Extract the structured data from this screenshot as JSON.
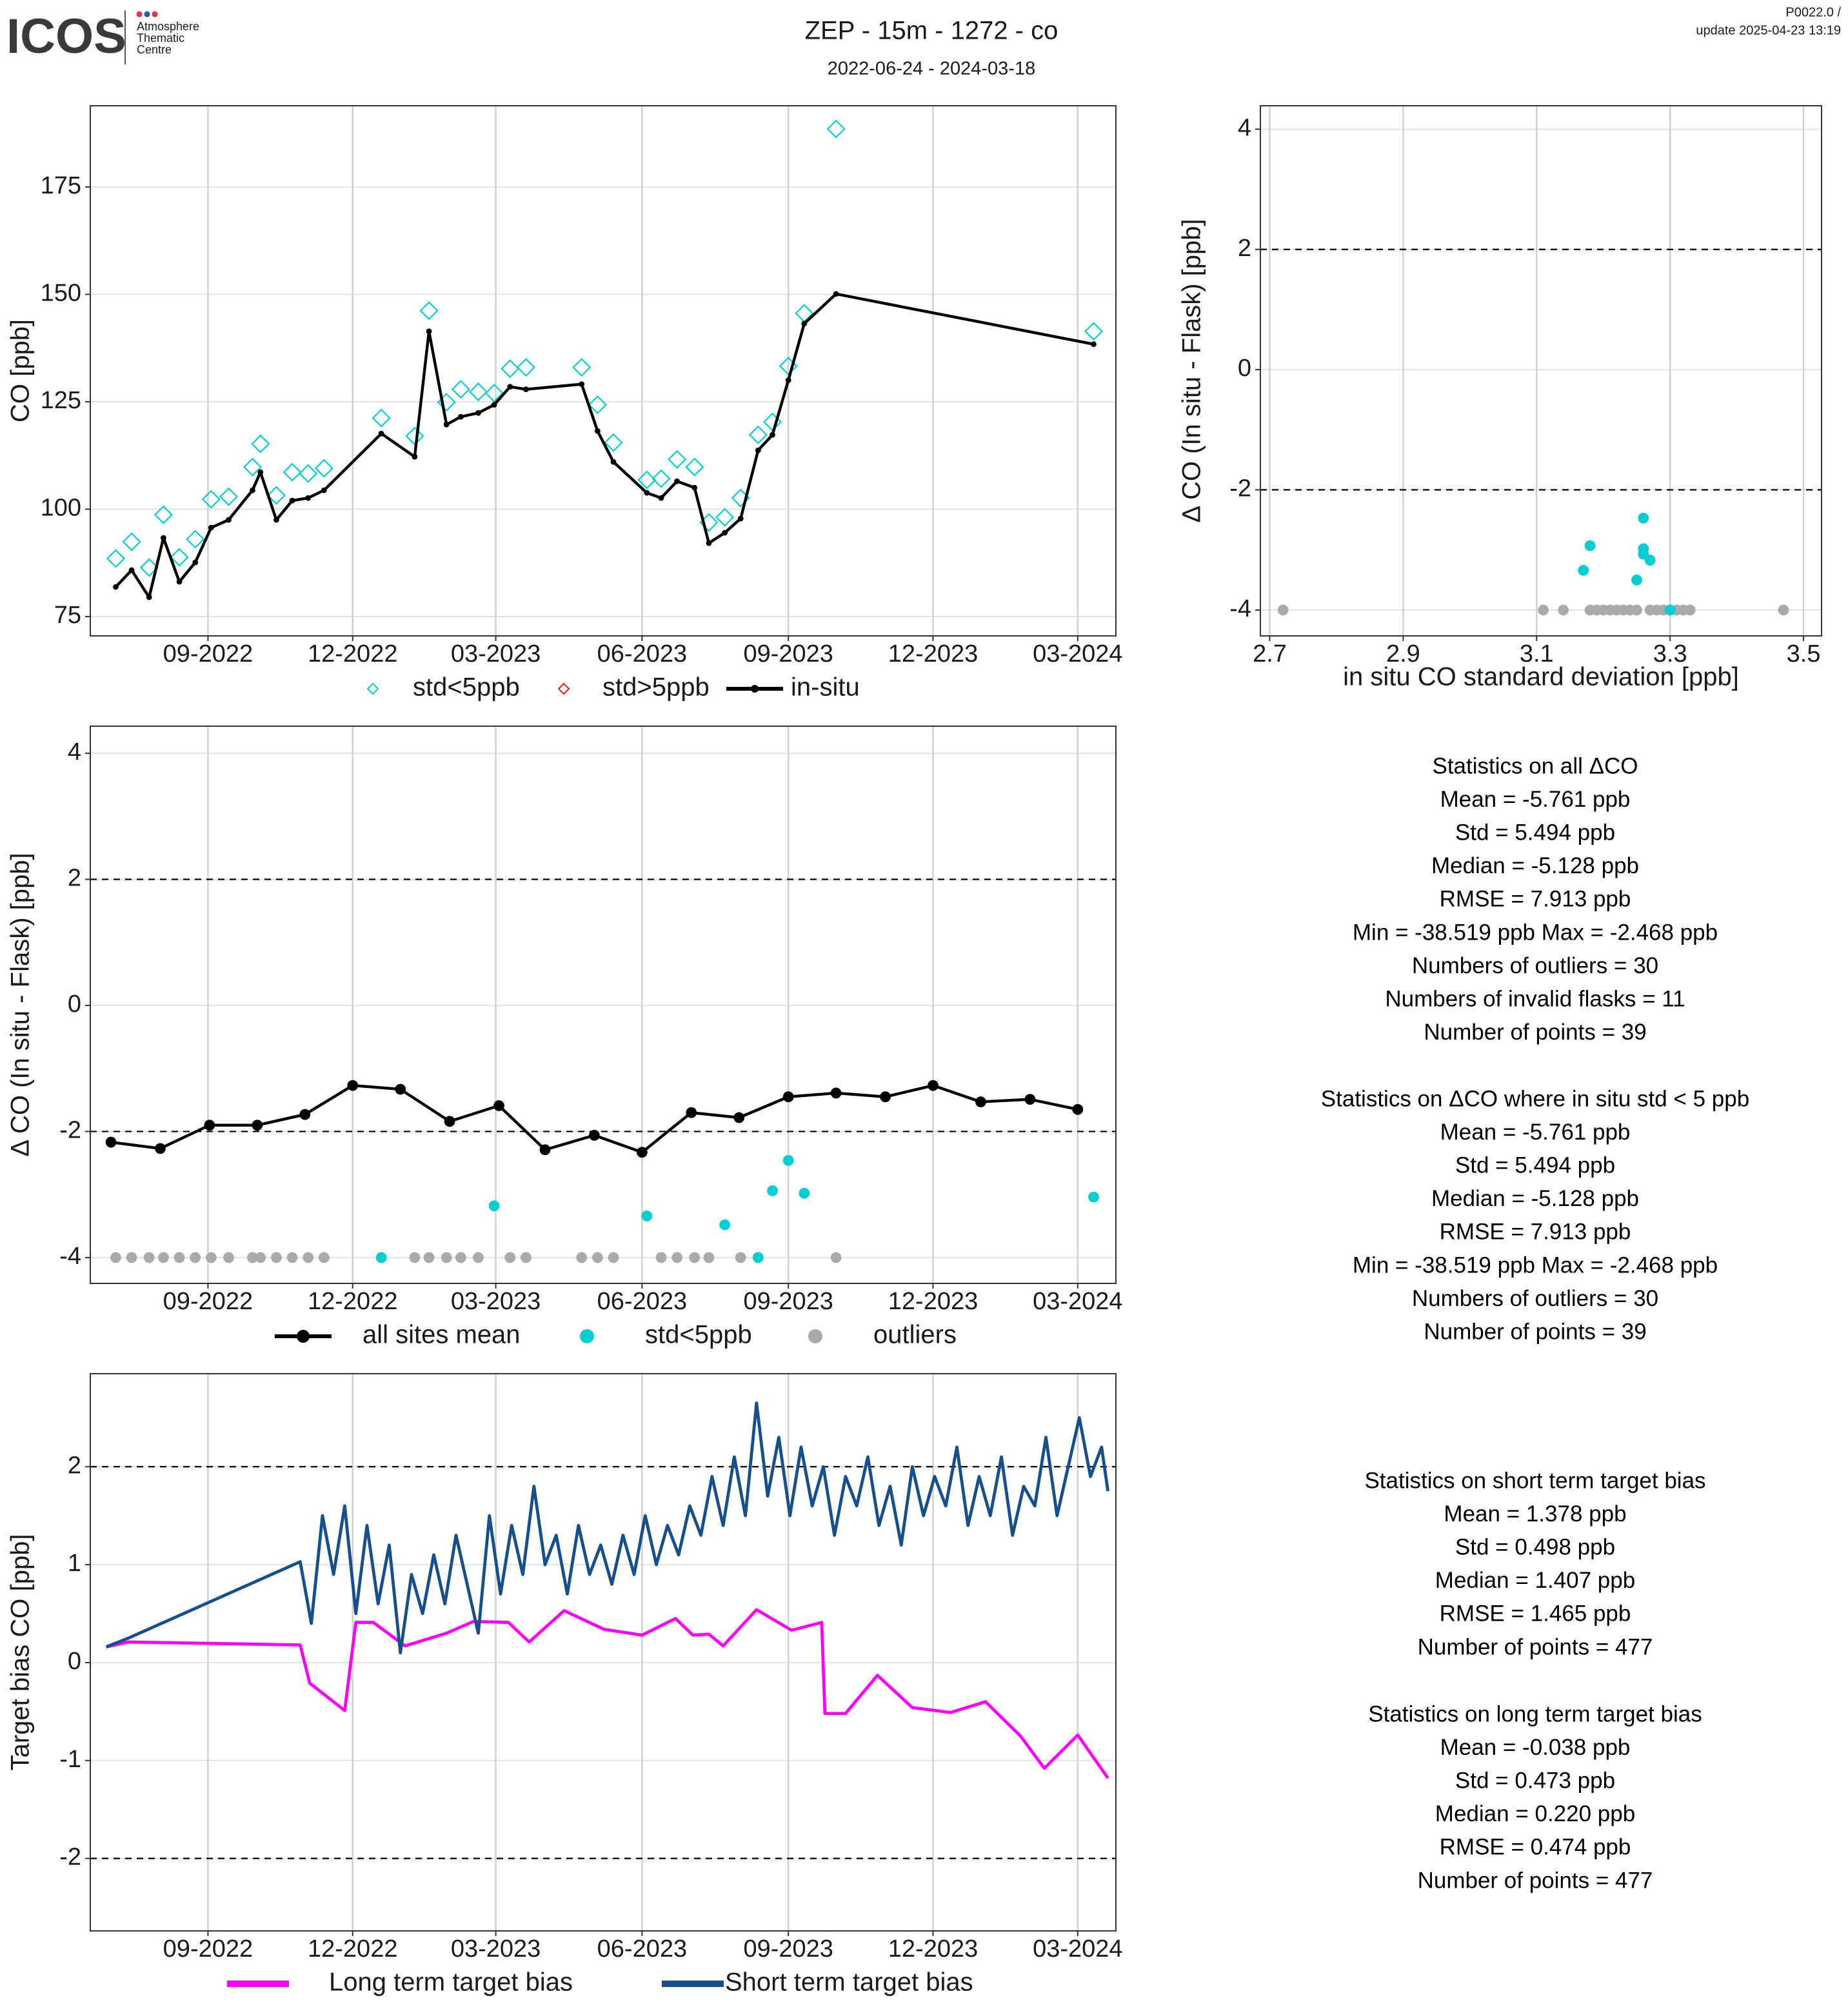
{
  "header": {
    "logo": "ICOS",
    "logo_lines": [
      "Atmosphere",
      "Thematic",
      "Centre"
    ],
    "title": "ZEP - 15m - 1272 - co",
    "subtitle": "2022-06-24 - 2024-03-18",
    "version": "P0022.0 /",
    "update": "update  2025-04-23 13:19"
  },
  "chart_data": [
    {
      "type": "line",
      "xscale": "time",
      "ylabel": "CO [ppb]",
      "grid": true,
      "legend": "bottom",
      "xlim": [
        "2022-06-19",
        "2024-03-25"
      ],
      "xticks": [
        {
          "value": "2022-09-01",
          "label": "09-2022"
        },
        {
          "value": "2022-12-01",
          "label": "12-2022"
        },
        {
          "value": "2023-03-01",
          "label": "03-2023"
        },
        {
          "value": "2023-06-01",
          "label": "06-2023"
        },
        {
          "value": "2023-09-01",
          "label": "09-2023"
        },
        {
          "value": "2023-12-01",
          "label": "12-2023"
        },
        {
          "value": "2024-03-01",
          "label": "03-2024"
        }
      ],
      "ylim": [
        70.5,
        193.9
      ],
      "yticks": [
        75,
        100,
        125,
        150,
        175
      ],
      "x": [
        "2022-07-05",
        "2022-07-15",
        "2022-07-26",
        "2022-08-04",
        "2022-08-14",
        "2022-08-24",
        "2022-09-03",
        "2022-09-14",
        "2022-09-29",
        "2022-10-04",
        "2022-10-14",
        "2022-10-24",
        "2022-11-03",
        "2022-11-13",
        "2022-12-19",
        "2023-01-09",
        "2023-01-18",
        "2023-01-29",
        "2023-02-07",
        "2023-02-18",
        "2023-02-28",
        "2023-03-10",
        "2023-03-20",
        "2023-04-24",
        "2023-05-04",
        "2023-05-14",
        "2023-06-04",
        "2023-06-13",
        "2023-06-23",
        "2023-07-04",
        "2023-07-13",
        "2023-07-23",
        "2023-08-02",
        "2023-08-13",
        "2023-08-22",
        "2023-09-01",
        "2023-09-11",
        "2023-10-01",
        "2024-03-11"
      ],
      "series": [
        {
          "name": "std<5ppb",
          "color": "#00ced1",
          "style": "diamond",
          "values": [
            88.5,
            92.4,
            86.4,
            98.7,
            88.8,
            93,
            102.3,
            102.9,
            109.8,
            115.2,
            103.2,
            108.6,
            108.3,
            109.5,
            121.2,
            117,
            146.2,
            124.9,
            127.9,
            127.3,
            127,
            132.7,
            133,
            133,
            124.3,
            115.5,
            106.8,
            107.1,
            111.6,
            109.8,
            96.9,
            98.1,
            102.6,
            117.3,
            120.3,
            133.3,
            145.6,
            188.5,
            141.4
          ]
        },
        {
          "name": "std>5ppb",
          "color": "#e41a1c",
          "style": "diamond",
          "values": [
            null,
            null,
            null,
            null,
            null,
            null,
            null,
            null,
            null,
            null,
            null,
            null,
            null,
            null,
            null,
            null,
            null,
            null,
            null,
            null,
            null,
            null,
            null,
            null,
            null,
            null,
            null,
            null,
            null,
            null,
            null,
            null,
            null,
            null,
            null,
            null,
            null,
            null,
            null
          ]
        },
        {
          "name": "in-situ",
          "color": "#000000",
          "style": "line-points",
          "values": [
            81.9,
            85.8,
            79.5,
            93.3,
            83.1,
            87.6,
            95.7,
            97.5,
            104.4,
            108.6,
            97.5,
            102,
            102.6,
            104.4,
            117.6,
            112.2,
            141.4,
            119.7,
            121.5,
            122.4,
            124.3,
            128.5,
            127.9,
            129.1,
            118.2,
            111,
            103.8,
            102.6,
            106.5,
            105,
            92.1,
            94.5,
            97.8,
            113.7,
            117.3,
            130,
            143.2,
            150.1,
            138.4
          ]
        }
      ]
    },
    {
      "type": "scatter",
      "xlabel": "in situ CO standard deviation [ppb]",
      "ylabel": "Δ CO (In situ - Flask) [ppb]",
      "grid": true,
      "hlines": [
        2,
        -2
      ],
      "xlim": [
        2.686,
        3.527
      ],
      "xticks": [
        2.7,
        2.9,
        3.1,
        3.3,
        3.5
      ],
      "ylim": [
        -4.43,
        4.39
      ],
      "yticks": [
        4,
        2,
        0,
        -2,
        -4
      ],
      "series": [
        {
          "name": "outliers",
          "color": "#aaaaaa",
          "style": "dot",
          "x": [
            2.72,
            3.11,
            3.14,
            3.18,
            3.19,
            3.2,
            3.21,
            3.22,
            3.23,
            3.24,
            3.25,
            3.27,
            3.28,
            3.29,
            3.3,
            3.31,
            3.32,
            3.33,
            3.47
          ],
          "values": [
            -4,
            -4,
            -4,
            -4,
            -4,
            -4,
            -4,
            -4,
            -4,
            -4,
            -4,
            -4,
            -4,
            -4,
            -4,
            -4,
            -4,
            -4,
            -4
          ]
        },
        {
          "name": "std<5ppb",
          "color": "#00ced1",
          "style": "dot",
          "x": [
            3.18,
            3.17,
            3.26,
            3.26,
            3.26,
            3.27,
            3.25,
            3.3
          ],
          "values": [
            -2.93,
            -3.34,
            -2.47,
            -2.98,
            -3.07,
            -3.17,
            -3.5,
            -4
          ]
        }
      ]
    },
    {
      "type": "line",
      "xscale": "time",
      "ylabel": "Δ CO (In situ - Flask) [ppb]",
      "grid": true,
      "legend": "bottom",
      "hlines": [
        2,
        -2
      ],
      "xlim": [
        "2022-06-19",
        "2024-03-25"
      ],
      "xticks": [
        {
          "value": "2022-09-01",
          "label": "09-2022"
        },
        {
          "value": "2022-12-01",
          "label": "12-2022"
        },
        {
          "value": "2023-03-01",
          "label": "03-2023"
        },
        {
          "value": "2023-06-01",
          "label": "06-2023"
        },
        {
          "value": "2023-09-01",
          "label": "09-2023"
        },
        {
          "value": "2023-12-01",
          "label": "12-2023"
        },
        {
          "value": "2024-03-01",
          "label": "03-2024"
        }
      ],
      "ylim": [
        -4.41,
        4.43
      ],
      "yticks": [
        4,
        2,
        0,
        -2,
        -4
      ],
      "series": [
        {
          "name": "all sites mean",
          "color": "#000000",
          "style": "line-points",
          "x": [
            "2022-07-02",
            "2022-08-02",
            "2022-09-02",
            "2022-10-02",
            "2022-11-01",
            "2022-12-01",
            "2022-12-31",
            "2023-01-31",
            "2023-03-03",
            "2023-04-01",
            "2023-05-02",
            "2023-06-01",
            "2023-07-02",
            "2023-08-01",
            "2023-09-01",
            "2023-10-01",
            "2023-11-01",
            "2023-12-01",
            "2023-12-31",
            "2024-01-31",
            "2024-03-01"
          ],
          "values": [
            -2.17,
            -2.27,
            -1.9,
            -1.9,
            -1.73,
            -1.27,
            -1.33,
            -1.84,
            -1.59,
            -2.29,
            -2.06,
            -2.33,
            -1.7,
            -1.78,
            -1.45,
            -1.39,
            -1.45,
            -1.27,
            -1.53,
            -1.49,
            -1.65
          ]
        },
        {
          "name": "std<5ppb",
          "color": "#00ced1",
          "style": "dot",
          "x": [
            "2022-12-19",
            "2023-02-28",
            "2023-06-04",
            "2023-07-23",
            "2023-08-13",
            "2023-08-22",
            "2023-09-01",
            "2023-09-11",
            "2024-03-11"
          ],
          "values": [
            -4,
            -3.18,
            -3.34,
            -3.48,
            -4,
            -2.94,
            -2.46,
            -2.98,
            -3.04
          ]
        },
        {
          "name": "outliers",
          "color": "#aaaaaa",
          "style": "dot",
          "x": [
            "2022-07-05",
            "2022-07-15",
            "2022-07-26",
            "2022-08-04",
            "2022-08-14",
            "2022-08-24",
            "2022-09-03",
            "2022-09-14",
            "2022-09-29",
            "2022-10-04",
            "2022-10-14",
            "2022-10-24",
            "2022-11-03",
            "2022-11-13",
            "2023-01-09",
            "2023-01-18",
            "2023-01-29",
            "2023-02-07",
            "2023-02-18",
            "2023-03-10",
            "2023-03-20",
            "2023-04-24",
            "2023-05-04",
            "2023-05-14",
            "2023-06-13",
            "2023-06-23",
            "2023-07-04",
            "2023-07-13",
            "2023-08-02",
            "2023-10-01"
          ],
          "values": [
            -4,
            -4,
            -4,
            -4,
            -4,
            -4,
            -4,
            -4,
            -4,
            -4,
            -4,
            -4,
            -4,
            -4,
            -4,
            -4,
            -4,
            -4,
            -4,
            -4,
            -4,
            -4,
            -4,
            -4,
            -4,
            -4,
            -4,
            -4,
            -4,
            -4
          ]
        }
      ]
    },
    {
      "type": "line",
      "xscale": "time",
      "ylabel": "Target bias CO [ppb]",
      "grid": true,
      "legend": "bottom",
      "hlines": [
        2,
        -2
      ],
      "xlim": [
        "2022-06-19",
        "2024-03-25"
      ],
      "xticks": [
        {
          "value": "2022-09-01",
          "label": "09-2022"
        },
        {
          "value": "2022-12-01",
          "label": "12-2022"
        },
        {
          "value": "2023-03-01",
          "label": "03-2023"
        },
        {
          "value": "2023-06-01",
          "label": "06-2023"
        },
        {
          "value": "2023-09-01",
          "label": "09-2023"
        },
        {
          "value": "2023-12-01",
          "label": "12-2023"
        },
        {
          "value": "2024-03-01",
          "label": "03-2024"
        }
      ],
      "ylim": [
        -2.74,
        2.95
      ],
      "yticks": [
        2,
        1,
        0,
        -1,
        -2
      ],
      "series": [
        {
          "name": "Long term target bias",
          "color": "#ff00ff",
          "style": "line",
          "x": [
            "2022-06-29",
            "2022-07-13",
            "2022-10-29",
            "2022-11-04",
            "2022-11-26",
            "2022-12-03",
            "2022-12-14",
            "2023-01-03",
            "2023-01-29",
            "2023-02-15",
            "2023-03-09",
            "2023-03-22",
            "2023-04-13",
            "2023-05-08",
            "2023-06-01",
            "2023-06-22",
            "2023-07-03",
            "2023-07-13",
            "2023-07-22",
            "2023-08-12",
            "2023-09-03",
            "2023-09-22",
            "2023-09-24",
            "2023-10-07",
            "2023-10-27",
            "2023-11-18",
            "2023-12-12",
            "2024-01-03",
            "2024-01-25",
            "2024-02-09",
            "2024-03-01",
            "2024-03-20"
          ],
          "values": [
            0.16,
            0.21,
            0.18,
            -0.21,
            -0.49,
            0.41,
            0.41,
            0.17,
            0.3,
            0.42,
            0.41,
            0.21,
            0.53,
            0.34,
            0.28,
            0.45,
            0.28,
            0.29,
            0.17,
            0.54,
            0.33,
            0.41,
            -0.52,
            -0.52,
            -0.13,
            -0.46,
            -0.51,
            -0.4,
            -0.75,
            -1.08,
            -0.74,
            -1.18
          ]
        },
        {
          "name": "Short term target bias",
          "color": "#154f8c",
          "style": "line",
          "x": [
            "2022-06-29",
            "2022-07-13",
            "2022-10-29",
            "2022-11-05",
            "2022-11-12",
            "2022-11-19",
            "2022-11-26",
            "2022-12-03",
            "2022-12-10",
            "2022-12-17",
            "2022-12-24",
            "2022-12-31",
            "2023-01-07",
            "2023-01-14",
            "2023-01-21",
            "2023-01-28",
            "2023-02-04",
            "2023-02-11",
            "2023-02-18",
            "2023-02-25",
            "2023-03-04",
            "2023-03-11",
            "2023-03-18",
            "2023-03-25",
            "2023-04-01",
            "2023-04-08",
            "2023-04-15",
            "2023-04-22",
            "2023-04-29",
            "2023-05-06",
            "2023-05-13",
            "2023-05-20",
            "2023-05-27",
            "2023-06-03",
            "2023-06-10",
            "2023-06-17",
            "2023-06-24",
            "2023-07-01",
            "2023-07-08",
            "2023-07-15",
            "2023-07-22",
            "2023-07-29",
            "2023-08-05",
            "2023-08-12",
            "2023-08-19",
            "2023-08-26",
            "2023-09-02",
            "2023-09-09",
            "2023-09-16",
            "2023-09-23",
            "2023-09-30",
            "2023-10-07",
            "2023-10-14",
            "2023-10-21",
            "2023-10-28",
            "2023-11-04",
            "2023-11-11",
            "2023-11-18",
            "2023-11-25",
            "2023-12-02",
            "2023-12-09",
            "2023-12-16",
            "2023-12-23",
            "2023-12-30",
            "2024-01-06",
            "2024-01-13",
            "2024-01-20",
            "2024-01-27",
            "2024-02-03",
            "2024-02-10",
            "2024-02-17",
            "2024-02-24",
            "2024-03-02",
            "2024-03-09",
            "2024-03-16",
            "2024-03-20"
          ],
          "values": [
            0.16,
            0.25,
            1.03,
            0.4,
            1.5,
            0.9,
            1.6,
            0.5,
            1.4,
            0.6,
            1.2,
            0.1,
            0.9,
            0.5,
            1.1,
            0.6,
            1.3,
            0.8,
            0.3,
            1.5,
            0.7,
            1.4,
            0.9,
            1.8,
            1.0,
            1.3,
            0.7,
            1.4,
            0.9,
            1.2,
            0.8,
            1.3,
            0.9,
            1.5,
            1.0,
            1.4,
            1.1,
            1.6,
            1.3,
            1.9,
            1.4,
            2.1,
            1.5,
            2.65,
            1.7,
            2.3,
            1.5,
            2.2,
            1.6,
            2.0,
            1.3,
            1.9,
            1.6,
            2.1,
            1.4,
            1.8,
            1.2,
            2.0,
            1.5,
            1.9,
            1.6,
            2.2,
            1.4,
            1.9,
            1.5,
            2.1,
            1.3,
            1.8,
            1.6,
            2.3,
            1.5,
            2.0,
            2.5,
            1.9,
            2.2,
            1.75
          ]
        }
      ]
    }
  ],
  "statistics": [
    {
      "title": "Statistics on all ΔCO",
      "lines": [
        "Mean =  -5.761 ppb",
        "Std =  5.494 ppb",
        "Median =  -5.128 ppb",
        "RMSE =  7.913 ppb",
        "Min =  -38.519 ppb Max =  -2.468 ppb",
        "Numbers of outliers =  30",
        "Numbers of invalid flasks =  11",
        "Number of points =  39"
      ]
    },
    {
      "title": "Statistics on ΔCO where in situ std < 5 ppb",
      "lines": [
        "Mean =  -5.761 ppb",
        "Std =  5.494 ppb",
        "Median =  -5.128 ppb",
        "RMSE =  7.913 ppb",
        "Min =  -38.519 ppb Max =  -2.468 ppb",
        "Numbers of outliers =  30",
        "Number of points =  39"
      ]
    },
    {
      "title": "Statistics on short term target bias",
      "lines": [
        "Mean =  1.378 ppb",
        "Std =  0.498 ppb",
        "Median =  1.407 ppb",
        "RMSE =  1.465 ppb",
        "Number of points =  477"
      ]
    },
    {
      "title": "Statistics on long term target bias",
      "lines": [
        "Mean =  -0.038 ppb",
        "Std =  0.473 ppb",
        "Median =  0.220 ppb",
        "RMSE =  0.474 ppb",
        "Number of points =  477"
      ]
    }
  ]
}
